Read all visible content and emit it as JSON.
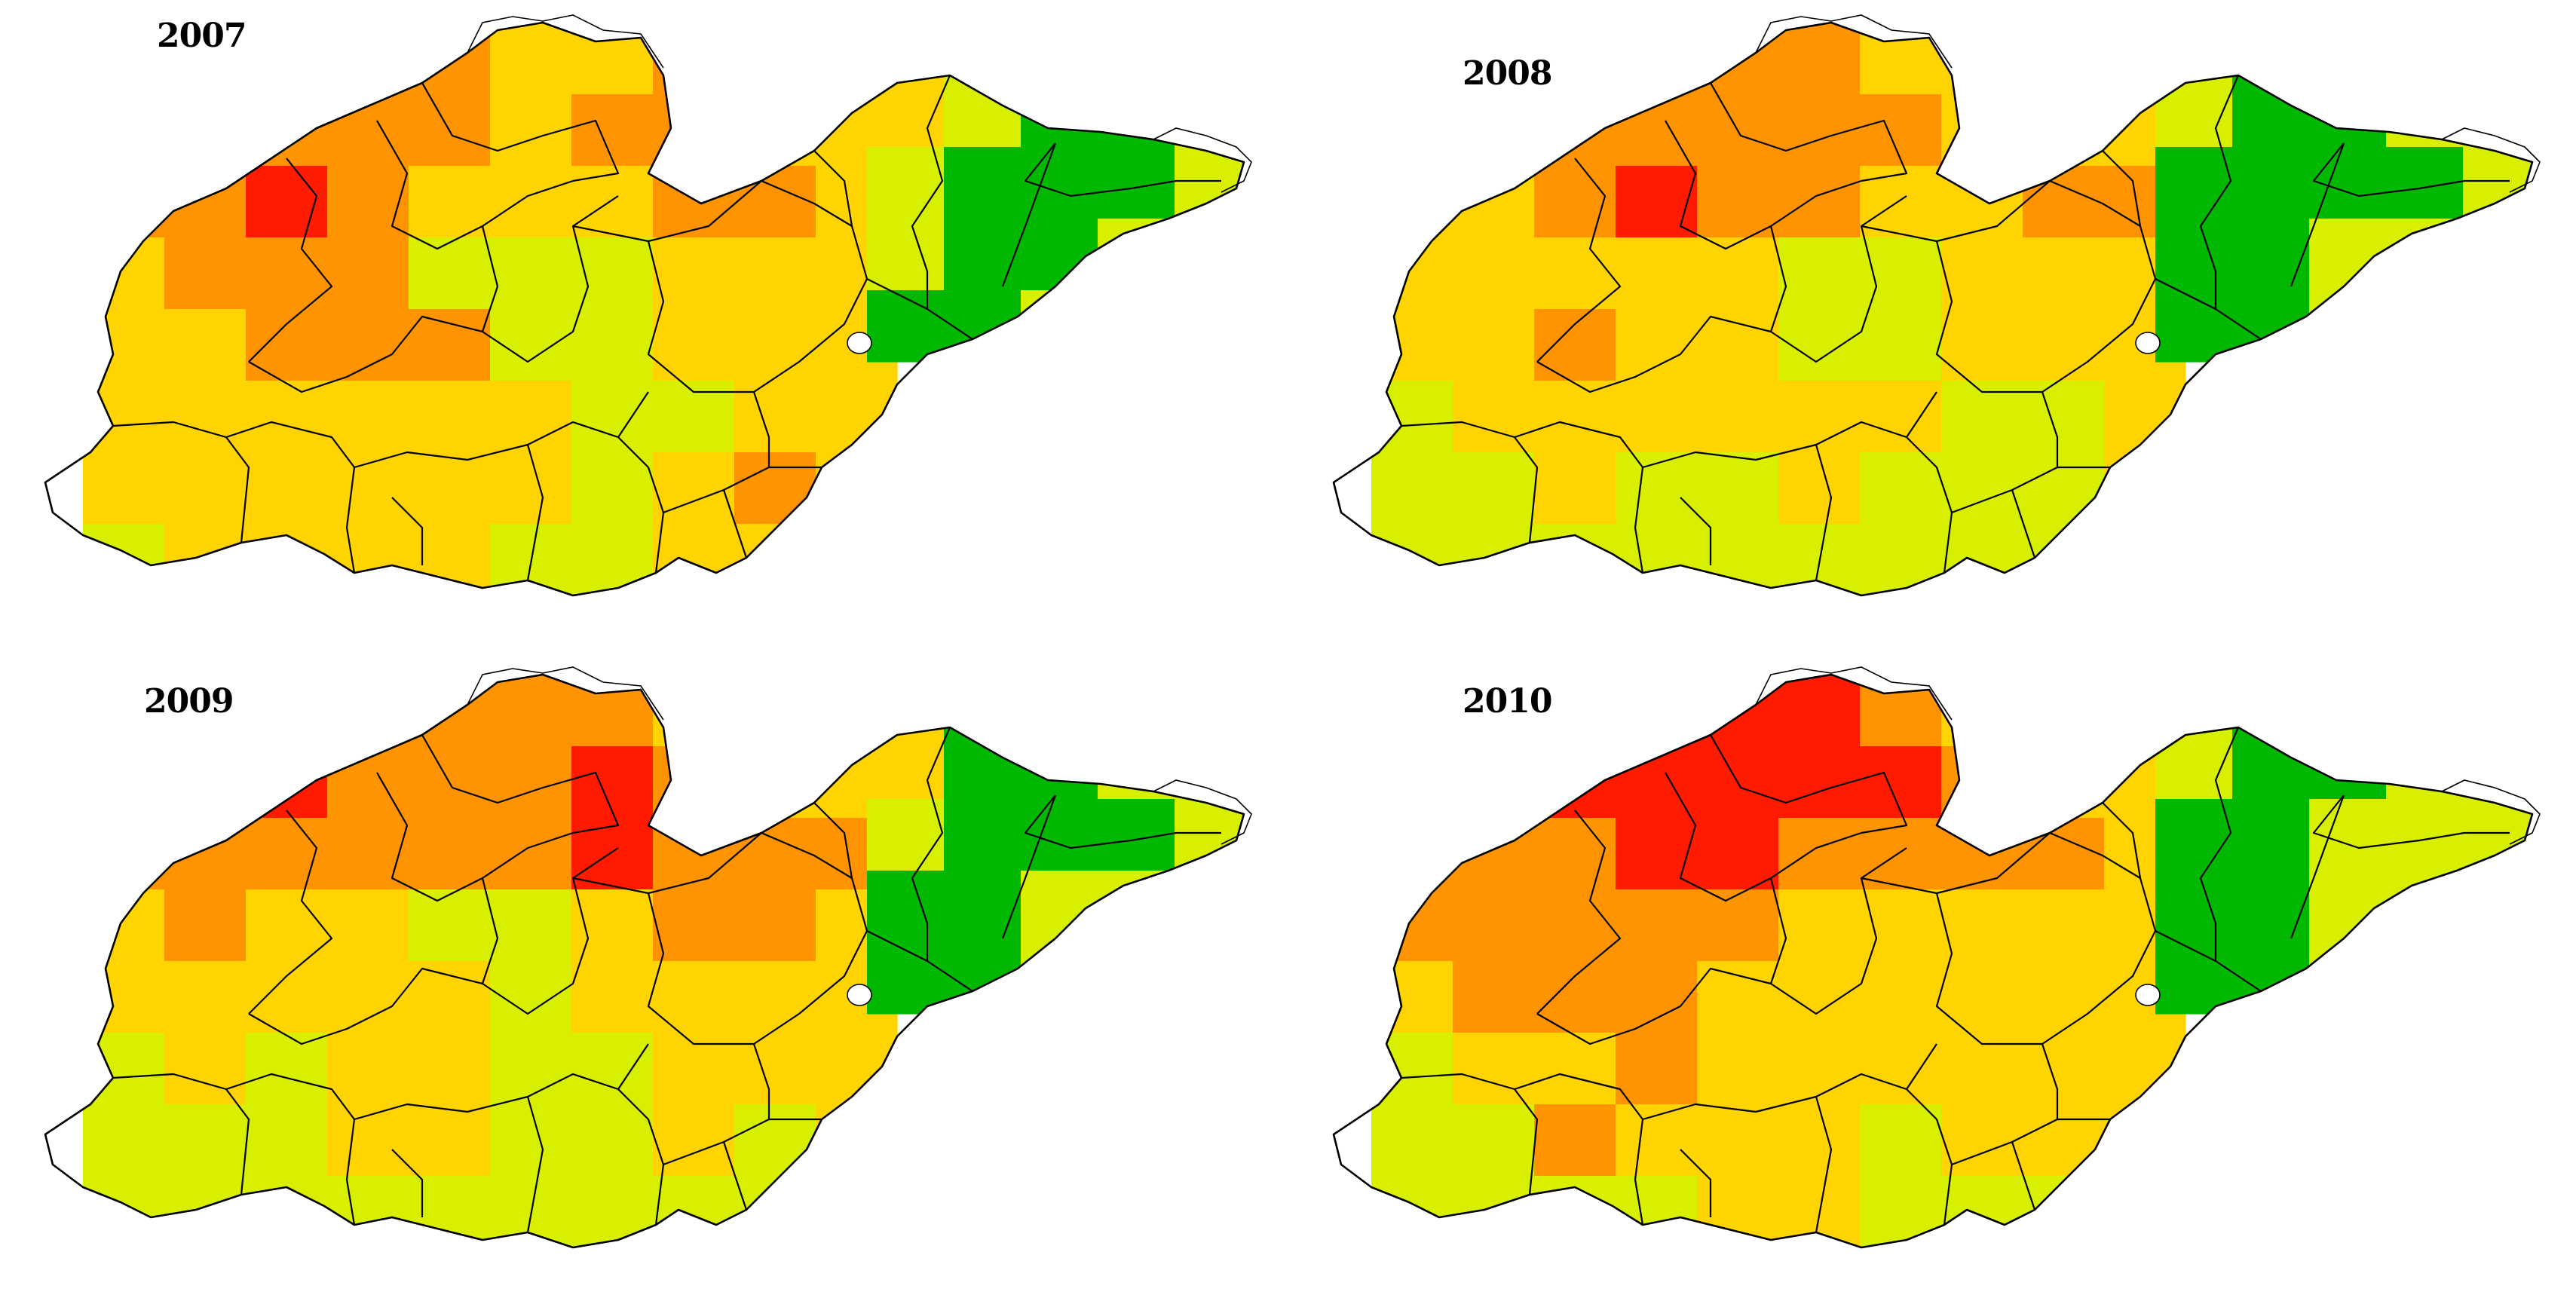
{
  "figure": {
    "panels": [
      {
        "year": "2007",
        "west": [
          [
            "orange",
            "orange",
            "yellow",
            "orange",
            "orange",
            "yellow",
            "yellow",
            "orange",
            "yellow",
            "green"
          ],
          [
            "orange",
            "orange",
            "orange",
            "orange",
            "orange",
            "yellow",
            "orange",
            "orange",
            "yellow",
            "yellow"
          ],
          [
            "orange",
            "orange",
            "red",
            "orange",
            "yellow",
            "yellow",
            "yellow",
            "orange",
            "orange",
            "yellow"
          ],
          [
            "yellow",
            "orange",
            "orange",
            "orange",
            "lime",
            "lime",
            "lime",
            "yellow",
            "yellow",
            "yellow"
          ],
          [
            "yellow",
            "yellow",
            "orange",
            "orange",
            "orange",
            "lime",
            "lime",
            "yellow",
            "yellow",
            "yellow"
          ],
          [
            "yellow",
            "yellow",
            "yellow",
            "yellow",
            "yellow",
            "yellow",
            "lime",
            "lime",
            "yellow",
            "yellow"
          ],
          [
            "yellow",
            "yellow",
            "yellow",
            "yellow",
            "yellow",
            "yellow",
            "lime",
            "yellow",
            "orange",
            "yellow"
          ],
          [
            "lime",
            "yellow",
            "yellow",
            "yellow",
            "yellow",
            "lime",
            "lime",
            "yellow",
            "yellow",
            "lime"
          ]
        ],
        "east": [
          [
            "yellow",
            "lime",
            "green",
            "green",
            "lime"
          ],
          [
            "lime",
            "green",
            "green",
            "green",
            "lime"
          ],
          [
            "lime",
            "green",
            "green",
            "lime",
            "lime"
          ],
          [
            "green",
            "green",
            "lime",
            "lime",
            "lime"
          ]
        ]
      },
      {
        "year": "2008",
        "west": [
          [
            "yellow",
            "orange",
            "orange",
            "orange",
            "orange",
            "orange",
            "yellow",
            "yellow",
            "yellow",
            "lime"
          ],
          [
            "yellow",
            "orange",
            "orange",
            "orange",
            "orange",
            "orange",
            "orange",
            "yellow",
            "yellow",
            "yellow"
          ],
          [
            "yellow",
            "yellow",
            "orange",
            "red",
            "orange",
            "orange",
            "yellow",
            "yellow",
            "orange",
            "orange"
          ],
          [
            "yellow",
            "yellow",
            "yellow",
            "yellow",
            "yellow",
            "lime",
            "lime",
            "yellow",
            "yellow",
            "yellow"
          ],
          [
            "yellow",
            "yellow",
            "orange",
            "yellow",
            "yellow",
            "lime",
            "lime",
            "yellow",
            "yellow",
            "yellow"
          ],
          [
            "lime",
            "yellow",
            "yellow",
            "yellow",
            "yellow",
            "yellow",
            "yellow",
            "lime",
            "lime",
            "yellow"
          ],
          [
            "lime",
            "lime",
            "yellow",
            "lime",
            "lime",
            "yellow",
            "lime",
            "lime",
            "lime",
            "yellow"
          ],
          [
            "lime",
            "lime",
            "lime",
            "lime",
            "lime",
            "lime",
            "lime",
            "lime",
            "lime",
            "lime"
          ]
        ],
        "east": [
          [
            "lime",
            "green",
            "green",
            "lime",
            "lime"
          ],
          [
            "green",
            "green",
            "green",
            "green",
            "lime"
          ],
          [
            "green",
            "green",
            "lime",
            "lime",
            "lime"
          ],
          [
            "green",
            "green",
            "lime",
            "lime",
            "lime"
          ]
        ]
      },
      {
        "year": "2009",
        "west": [
          [
            "orange",
            "orange",
            "yellow",
            "orange",
            "orange",
            "orange",
            "orange",
            "yellow",
            "yellow",
            "lime"
          ],
          [
            "orange",
            "red",
            "red",
            "orange",
            "orange",
            "orange",
            "red",
            "orange",
            "yellow",
            "yellow"
          ],
          [
            "orange",
            "orange",
            "orange",
            "orange",
            "orange",
            "orange",
            "red",
            "orange",
            "orange",
            "orange"
          ],
          [
            "yellow",
            "orange",
            "yellow",
            "yellow",
            "lime",
            "lime",
            "yellow",
            "orange",
            "orange",
            "yellow"
          ],
          [
            "yellow",
            "yellow",
            "yellow",
            "yellow",
            "yellow",
            "lime",
            "yellow",
            "yellow",
            "yellow",
            "yellow"
          ],
          [
            "lime",
            "yellow",
            "lime",
            "yellow",
            "yellow",
            "lime",
            "lime",
            "yellow",
            "yellow",
            "yellow"
          ],
          [
            "lime",
            "lime",
            "lime",
            "yellow",
            "yellow",
            "lime",
            "lime",
            "yellow",
            "lime",
            "yellow"
          ],
          [
            "lime",
            "lime",
            "lime",
            "lime",
            "lime",
            "lime",
            "lime",
            "lime",
            "lime",
            "lime"
          ]
        ],
        "east": [
          [
            "yellow",
            "green",
            "green",
            "lime",
            "lime"
          ],
          [
            "lime",
            "green",
            "green",
            "green",
            "lime"
          ],
          [
            "green",
            "green",
            "lime",
            "lime",
            "lime"
          ],
          [
            "green",
            "green",
            "lime",
            "lime",
            "lime"
          ]
        ]
      },
      {
        "year": "2010",
        "west": [
          [
            "orange",
            "orange",
            "orange",
            "red",
            "red",
            "red",
            "orange",
            "yellow",
            "yellow",
            "lime"
          ],
          [
            "orange",
            "orange",
            "red",
            "red",
            "red",
            "red",
            "red",
            "orange",
            "yellow",
            "yellow"
          ],
          [
            "orange",
            "orange",
            "orange",
            "red",
            "red",
            "orange",
            "orange",
            "orange",
            "orange",
            "yellow"
          ],
          [
            "orange",
            "orange",
            "orange",
            "orange",
            "orange",
            "yellow",
            "yellow",
            "yellow",
            "yellow",
            "yellow"
          ],
          [
            "yellow",
            "orange",
            "orange",
            "orange",
            "yellow",
            "yellow",
            "yellow",
            "yellow",
            "yellow",
            "yellow"
          ],
          [
            "lime",
            "yellow",
            "yellow",
            "orange",
            "yellow",
            "yellow",
            "yellow",
            "yellow",
            "yellow",
            "yellow"
          ],
          [
            "lime",
            "lime",
            "orange",
            "yellow",
            "yellow",
            "yellow",
            "lime",
            "yellow",
            "yellow",
            "yellow"
          ],
          [
            "lime",
            "lime",
            "lime",
            "lime",
            "yellow",
            "yellow",
            "lime",
            "lime",
            "lime",
            "lime"
          ]
        ],
        "east": [
          [
            "lime",
            "green",
            "green",
            "lime",
            "lime"
          ],
          [
            "green",
            "green",
            "lime",
            "lime",
            "lime"
          ],
          [
            "green",
            "green",
            "lime",
            "lime",
            "lime"
          ],
          [
            "green",
            "green",
            "lime",
            "lime",
            "lime"
          ]
        ]
      }
    ]
  },
  "palette": {
    "red": "#ff1a00",
    "orange": "#ff9400",
    "yellow": "#ffd400",
    "lime": "#d8f000",
    "green": "#00b800"
  }
}
